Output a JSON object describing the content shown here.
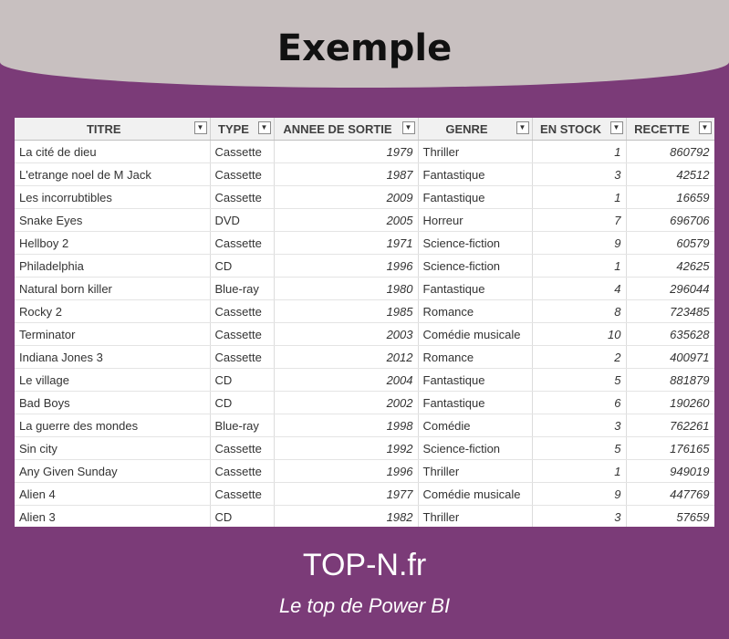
{
  "header": {
    "title": "Exemple"
  },
  "table": {
    "columns": [
      {
        "label": "TITRE"
      },
      {
        "label": "TYPE"
      },
      {
        "label": "ANNEE DE SORTIE"
      },
      {
        "label": "GENRE"
      },
      {
        "label": "EN STOCK"
      },
      {
        "label": "RECETTE"
      }
    ],
    "filter_icon": "dropdown-arrow-icon",
    "rows": [
      [
        "La cité de dieu",
        "Cassette",
        "1979",
        "Thriller",
        "1",
        "860792"
      ],
      [
        "L'etrange noel de M Jack",
        "Cassette",
        "1987",
        "Fantastique",
        "3",
        "42512"
      ],
      [
        "Les incorrubtibles",
        "Cassette",
        "2009",
        "Fantastique",
        "1",
        "16659"
      ],
      [
        "Snake Eyes",
        "DVD",
        "2005",
        "Horreur",
        "7",
        "696706"
      ],
      [
        "Hellboy 2",
        "Cassette",
        "1971",
        "Science-fiction",
        "9",
        "60579"
      ],
      [
        "Philadelphia",
        "CD",
        "1996",
        "Science-fiction",
        "1",
        "42625"
      ],
      [
        "Natural born killer",
        "Blue-ray",
        "1980",
        "Fantastique",
        "4",
        "296044"
      ],
      [
        "Rocky 2",
        "Cassette",
        "1985",
        "Romance",
        "8",
        "723485"
      ],
      [
        "Terminator",
        "Cassette",
        "2003",
        "Comédie musicale",
        "10",
        "635628"
      ],
      [
        "Indiana Jones 3",
        "Cassette",
        "2012",
        "Romance",
        "2",
        "400971"
      ],
      [
        "Le village",
        "CD",
        "2004",
        "Fantastique",
        "5",
        "881879"
      ],
      [
        "Bad Boys",
        "CD",
        "2002",
        "Fantastique",
        "6",
        "190260"
      ],
      [
        "La guerre des mondes",
        "Blue-ray",
        "1998",
        "Comédie",
        "3",
        "762261"
      ],
      [
        "Sin city",
        "Cassette",
        "1992",
        "Science-fiction",
        "5",
        "176165"
      ],
      [
        "Any Given Sunday",
        "Cassette",
        "1996",
        "Thriller",
        "1",
        "949019"
      ],
      [
        "Alien 4",
        "Cassette",
        "1977",
        "Comédie musicale",
        "9",
        "447769"
      ],
      [
        "Alien 3",
        "CD",
        "1982",
        "Thriller",
        "3",
        "57659"
      ]
    ]
  },
  "footer": {
    "title": "TOP-N.fr",
    "subtitle": "Le top de Power BI"
  },
  "colors": {
    "background": "#7b3b78",
    "banner": "#c8c0c0",
    "header_row": "#f1f1f1"
  }
}
